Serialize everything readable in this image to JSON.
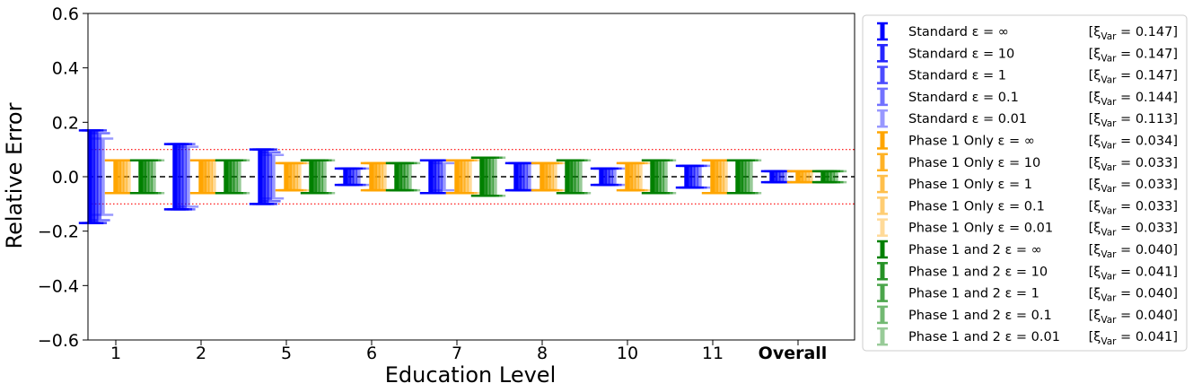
{
  "chart_data": {
    "type": "errorbar",
    "title": "",
    "xlabel": "Education Level",
    "ylabel": "Relative Error",
    "ylim": [
      -0.6,
      0.6
    ],
    "yticks": [
      -0.6,
      -0.4,
      -0.2,
      0.0,
      0.2,
      0.4,
      0.6
    ],
    "ytick_labels": [
      "−0.6",
      "−0.4",
      "−0.2",
      "0.0",
      "0.2",
      "0.4",
      "0.6"
    ],
    "categories": [
      "1",
      "2",
      "5",
      "6",
      "7",
      "8",
      "10",
      "11",
      "Overall"
    ],
    "bold_categories": [
      "Overall"
    ],
    "reference_lines": [
      {
        "y": 0.0,
        "style": "dashed",
        "color": "#000000"
      },
      {
        "y": 0.1,
        "style": "dotted",
        "color": "#ff0000"
      },
      {
        "y": -0.1,
        "style": "dotted",
        "color": "#ff0000"
      }
    ],
    "grid": false,
    "legend_position": "outside-right",
    "groups": [
      {
        "name": "Standard",
        "color": "#0000ff",
        "series": [
          {
            "label": "Standard ε = ∞",
            "xi_var": "[ξ",
            "xi_text": "Var = 0.147]",
            "alpha": 1.0,
            "values": [
              0.17,
              0.12,
              0.1,
              0.03,
              0.06,
              0.05,
              0.03,
              0.04,
              0.02
            ]
          },
          {
            "label": "Standard ε = 10",
            "xi_var": "[ξ",
            "xi_text": "Var = 0.147]",
            "alpha": 0.85,
            "values": [
              0.17,
              0.12,
              0.1,
              0.03,
              0.06,
              0.05,
              0.03,
              0.04,
              0.02
            ]
          },
          {
            "label": "Standard ε = 1",
            "xi_var": "[ξ",
            "xi_text": "Var = 0.147]",
            "alpha": 0.7,
            "values": [
              0.17,
              0.12,
              0.1,
              0.03,
              0.06,
              0.05,
              0.03,
              0.04,
              0.02
            ]
          },
          {
            "label": "Standard ε = 0.1",
            "xi_var": "[ξ",
            "xi_text": "Var = 0.144]",
            "alpha": 0.55,
            "values": [
              0.16,
              0.12,
              0.09,
              0.03,
              0.06,
              0.05,
              0.03,
              0.04,
              0.02
            ]
          },
          {
            "label": "Standard ε = 0.01",
            "xi_var": "[ξ",
            "xi_text": "Var = 0.113]",
            "alpha": 0.4,
            "values": [
              0.14,
              0.11,
              0.08,
              0.03,
              0.05,
              0.05,
              0.03,
              0.04,
              0.02
            ]
          }
        ]
      },
      {
        "name": "Phase 1 Only",
        "color": "#ffa500",
        "series": [
          {
            "label": "Phase 1 Only ε = ∞",
            "xi_var": "[ξ",
            "xi_text": "Var = 0.034]",
            "alpha": 1.0,
            "values": [
              0.06,
              0.06,
              0.05,
              0.05,
              0.06,
              0.05,
              0.05,
              0.06,
              0.02
            ]
          },
          {
            "label": "Phase 1 Only ε = 10",
            "xi_var": "[ξ",
            "xi_text": "Var = 0.033]",
            "alpha": 0.85,
            "values": [
              0.06,
              0.06,
              0.05,
              0.05,
              0.06,
              0.05,
              0.05,
              0.06,
              0.02
            ]
          },
          {
            "label": "Phase 1 Only ε = 1",
            "xi_var": "[ξ",
            "xi_text": "Var = 0.033]",
            "alpha": 0.7,
            "values": [
              0.06,
              0.06,
              0.05,
              0.05,
              0.06,
              0.05,
              0.05,
              0.06,
              0.02
            ]
          },
          {
            "label": "Phase 1 Only ε = 0.1",
            "xi_var": "[ξ",
            "xi_text": "Var = 0.033]",
            "alpha": 0.55,
            "values": [
              0.06,
              0.06,
              0.05,
              0.05,
              0.06,
              0.05,
              0.05,
              0.06,
              0.02
            ]
          },
          {
            "label": "Phase 1 Only ε = 0.01",
            "xi_var": "[ξ",
            "xi_text": "Var = 0.033]",
            "alpha": 0.4,
            "values": [
              0.06,
              0.06,
              0.05,
              0.05,
              0.06,
              0.05,
              0.05,
              0.06,
              0.02
            ]
          }
        ]
      },
      {
        "name": "Phase 1 and 2",
        "color": "#008000",
        "series": [
          {
            "label": "Phase 1 and 2 ε = ∞",
            "xi_var": "[ξ",
            "xi_text": "Var = 0.040]",
            "alpha": 1.0,
            "values": [
              0.06,
              0.06,
              0.06,
              0.05,
              0.07,
              0.06,
              0.06,
              0.06,
              0.02
            ]
          },
          {
            "label": "Phase 1 and 2 ε = 10",
            "xi_var": "[ξ",
            "xi_text": "Var = 0.041]",
            "alpha": 0.85,
            "values": [
              0.06,
              0.06,
              0.06,
              0.05,
              0.07,
              0.06,
              0.06,
              0.06,
              0.02
            ]
          },
          {
            "label": "Phase 1 and 2 ε = 1",
            "xi_var": "[ξ",
            "xi_text": "Var = 0.040]",
            "alpha": 0.7,
            "values": [
              0.06,
              0.06,
              0.06,
              0.05,
              0.07,
              0.06,
              0.06,
              0.06,
              0.02
            ]
          },
          {
            "label": "Phase 1 and 2 ε = 0.1",
            "xi_var": "[ξ",
            "xi_text": "Var = 0.040]",
            "alpha": 0.55,
            "values": [
              0.06,
              0.06,
              0.06,
              0.05,
              0.07,
              0.06,
              0.06,
              0.06,
              0.02
            ]
          },
          {
            "label": "Phase 1 and 2 ε = 0.01",
            "xi_var": "[ξ",
            "xi_text": "Var = 0.041]",
            "alpha": 0.4,
            "values": [
              0.06,
              0.06,
              0.06,
              0.05,
              0.07,
              0.06,
              0.06,
              0.06,
              0.02
            ]
          }
        ]
      }
    ]
  }
}
